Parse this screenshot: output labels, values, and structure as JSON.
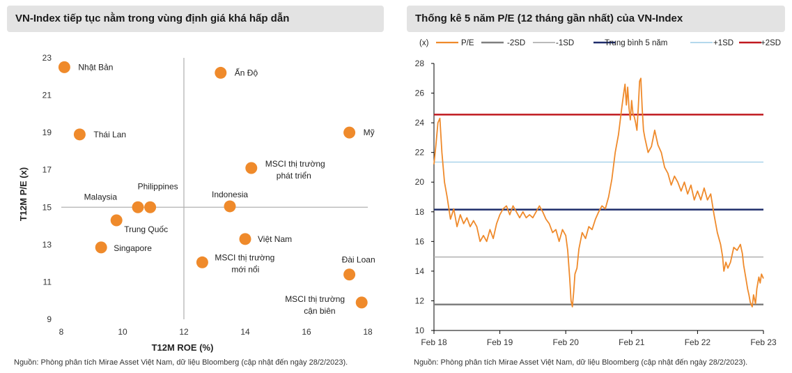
{
  "left": {
    "title": "VN-Index tiếp tục nằm trong vùng định giá khá hấp dẫn",
    "source": "Nguồn: Phòng phân tích Mirae Asset Việt Nam, dữ liệu Bloomberg (cập nhật đến ngày 28/2/2023).",
    "colors": {
      "point": "#ef8a2b",
      "crosshair": "#b3b3b3"
    }
  },
  "right": {
    "title": "Thống kê 5 năm P/E (12 tháng gần nhất) của VN-Index",
    "source": "Nguồn: Phòng phân tích Mirae Asset Việt Nam, dữ liệu Bloomberg (cập nhật đến ngày 28/2/2023).",
    "unit_label": "(x)"
  },
  "chart_data": [
    {
      "type": "scatter",
      "title": "VN-Index tiếp tục nằm trong vùng định giá khá hấp dẫn",
      "xlabel": "T12M ROE (%)",
      "ylabel": "T12M P/E (x)",
      "xlim": [
        8,
        18
      ],
      "ylim": [
        9,
        23
      ],
      "xticks": [
        8,
        10,
        12,
        14,
        16,
        18
      ],
      "yticks": [
        9,
        11,
        13,
        15,
        17,
        19,
        21,
        23
      ],
      "crosshair": {
        "x": 12,
        "y": 15
      },
      "points": [
        {
          "name": "Nhật Bản",
          "lines": [
            "Nhật Bản"
          ],
          "x": 8.1,
          "y": 22.5
        },
        {
          "name": "Ấn Độ",
          "lines": [
            "Ấn Độ"
          ],
          "x": 13.2,
          "y": 22.2
        },
        {
          "name": "Thái Lan",
          "lines": [
            "Thái Lan"
          ],
          "x": 8.6,
          "y": 18.9
        },
        {
          "name": "Mỹ",
          "lines": [
            "Mỹ"
          ],
          "x": 17.4,
          "y": 19.0
        },
        {
          "name": "MSCI thị trường phát triển",
          "lines": [
            "MSCI thị trường",
            "phát triển"
          ],
          "x": 14.2,
          "y": 17.1
        },
        {
          "name": "Malaysia",
          "lines": [
            "Malaysia"
          ],
          "x": 10.5,
          "y": 15.0
        },
        {
          "name": "Philippines",
          "lines": [
            "Philippines"
          ],
          "x": 10.9,
          "y": 15.0
        },
        {
          "name": "Indonesia",
          "lines": [
            "Indonesia"
          ],
          "x": 13.5,
          "y": 15.05
        },
        {
          "name": "Trung Quốc",
          "lines": [
            "Trung Quốc"
          ],
          "x": 9.8,
          "y": 14.3
        },
        {
          "name": "Singapore",
          "lines": [
            "Singapore"
          ],
          "x": 9.3,
          "y": 12.85
        },
        {
          "name": "Việt Nam",
          "lines": [
            "Việt Nam"
          ],
          "x": 14.0,
          "y": 13.3
        },
        {
          "name": "MSCI thị trường mới nổi",
          "lines": [
            "MSCI thị trường",
            "mới nổi"
          ],
          "x": 12.6,
          "y": 12.05
        },
        {
          "name": "Đài Loan",
          "lines": [
            "Đài Loan"
          ],
          "x": 17.4,
          "y": 11.4
        },
        {
          "name": "MSCI thị trường cận biên",
          "lines": [
            "MSCI thị trường",
            "cận biên"
          ],
          "x": 17.8,
          "y": 9.9
        }
      ]
    },
    {
      "type": "line",
      "title": "Thống kê 5 năm P/E (12 tháng gần nhất) của VN-Index",
      "ylabel": "(x)",
      "ylim": [
        10,
        28
      ],
      "yticks": [
        10,
        12,
        14,
        16,
        18,
        20,
        22,
        24,
        26,
        28
      ],
      "xlim": [
        2018.0,
        2023.0
      ],
      "xticks": [
        {
          "label": "Feb 18",
          "t": 2018.0
        },
        {
          "label": "Feb 19",
          "t": 2019.0
        },
        {
          "label": "Feb 20",
          "t": 2020.0
        },
        {
          "label": "Feb 21",
          "t": 2021.0
        },
        {
          "label": "Feb 22",
          "t": 2022.0
        },
        {
          "label": "Feb 23",
          "t": 2023.0
        }
      ],
      "legend": [
        "P/E",
        "-2SD",
        "-1SD",
        "Trung bình 5 năm",
        "+1SD",
        "+2SD"
      ],
      "hlines": [
        {
          "name": "-2SD",
          "value": 11.75,
          "color": "#7f7f7f",
          "width": 2.5
        },
        {
          "name": "-1SD",
          "value": 14.95,
          "color": "#b0b0b0",
          "width": 1.5
        },
        {
          "name": "Trung bình 5 năm",
          "value": 18.15,
          "color": "#1f2d6b",
          "width": 2.5
        },
        {
          "name": "+1SD",
          "value": 21.35,
          "color": "#a9d3ea",
          "width": 1.5
        },
        {
          "name": "+2SD",
          "value": 24.55,
          "color": "#c0191f",
          "width": 2.5
        }
      ],
      "series": [
        {
          "name": "P/E",
          "color": "#ef8a2b",
          "points": [
            [
              2018.0,
              21.2
            ],
            [
              2018.03,
              22.5
            ],
            [
              2018.06,
              24.0
            ],
            [
              2018.09,
              24.3
            ],
            [
              2018.12,
              22.0
            ],
            [
              2018.16,
              20.0
            ],
            [
              2018.2,
              19.0
            ],
            [
              2018.25,
              17.5
            ],
            [
              2018.3,
              18.2
            ],
            [
              2018.35,
              17.0
            ],
            [
              2018.4,
              17.8
            ],
            [
              2018.45,
              17.2
            ],
            [
              2018.5,
              17.6
            ],
            [
              2018.55,
              17.0
            ],
            [
              2018.6,
              17.4
            ],
            [
              2018.65,
              17.0
            ],
            [
              2018.7,
              16.0
            ],
            [
              2018.75,
              16.4
            ],
            [
              2018.8,
              16.0
            ],
            [
              2018.85,
              16.8
            ],
            [
              2018.9,
              16.2
            ],
            [
              2018.95,
              17.2
            ],
            [
              2019.0,
              17.8
            ],
            [
              2019.05,
              18.2
            ],
            [
              2019.1,
              18.4
            ],
            [
              2019.15,
              17.8
            ],
            [
              2019.2,
              18.4
            ],
            [
              2019.25,
              18.0
            ],
            [
              2019.3,
              17.6
            ],
            [
              2019.35,
              18.0
            ],
            [
              2019.4,
              17.6
            ],
            [
              2019.45,
              17.8
            ],
            [
              2019.5,
              17.6
            ],
            [
              2019.55,
              18.0
            ],
            [
              2019.6,
              18.4
            ],
            [
              2019.65,
              18.0
            ],
            [
              2019.7,
              17.5
            ],
            [
              2019.75,
              17.2
            ],
            [
              2019.8,
              16.6
            ],
            [
              2019.85,
              16.8
            ],
            [
              2019.9,
              16.0
            ],
            [
              2019.95,
              16.8
            ],
            [
              2020.0,
              16.4
            ],
            [
              2020.03,
              15.4
            ],
            [
              2020.06,
              13.5
            ],
            [
              2020.08,
              12.0
            ],
            [
              2020.1,
              11.6
            ],
            [
              2020.12,
              12.6
            ],
            [
              2020.14,
              13.8
            ],
            [
              2020.17,
              14.2
            ],
            [
              2020.2,
              15.5
            ],
            [
              2020.25,
              16.6
            ],
            [
              2020.3,
              16.2
            ],
            [
              2020.35,
              17.0
            ],
            [
              2020.4,
              16.8
            ],
            [
              2020.45,
              17.5
            ],
            [
              2020.5,
              18.0
            ],
            [
              2020.55,
              18.4
            ],
            [
              2020.6,
              18.2
            ],
            [
              2020.65,
              19.0
            ],
            [
              2020.7,
              20.2
            ],
            [
              2020.75,
              22.0
            ],
            [
              2020.8,
              23.2
            ],
            [
              2020.85,
              25.0
            ],
            [
              2020.88,
              26.0
            ],
            [
              2020.9,
              26.6
            ],
            [
              2020.92,
              25.2
            ],
            [
              2020.94,
              26.4
            ],
            [
              2020.96,
              25.0
            ],
            [
              2020.98,
              24.2
            ],
            [
              2021.0,
              25.5
            ],
            [
              2021.02,
              24.6
            ],
            [
              2021.04,
              24.4
            ],
            [
              2021.06,
              24.0
            ],
            [
              2021.08,
              23.5
            ],
            [
              2021.1,
              25.0
            ],
            [
              2021.12,
              26.8
            ],
            [
              2021.14,
              27.0
            ],
            [
              2021.16,
              25.0
            ],
            [
              2021.18,
              23.5
            ],
            [
              2021.2,
              23.0
            ],
            [
              2021.25,
              22.0
            ],
            [
              2021.3,
              22.4
            ],
            [
              2021.35,
              23.5
            ],
            [
              2021.4,
              22.5
            ],
            [
              2021.45,
              22.0
            ],
            [
              2021.5,
              21.0
            ],
            [
              2021.55,
              20.6
            ],
            [
              2021.6,
              19.8
            ],
            [
              2021.65,
              20.4
            ],
            [
              2021.7,
              20.0
            ],
            [
              2021.75,
              19.4
            ],
            [
              2021.8,
              20.0
            ],
            [
              2021.85,
              19.2
            ],
            [
              2021.9,
              19.8
            ],
            [
              2021.95,
              18.8
            ],
            [
              2022.0,
              19.4
            ],
            [
              2022.05,
              18.8
            ],
            [
              2022.1,
              19.6
            ],
            [
              2022.15,
              18.8
            ],
            [
              2022.2,
              19.2
            ],
            [
              2022.25,
              17.8
            ],
            [
              2022.3,
              16.6
            ],
            [
              2022.35,
              15.8
            ],
            [
              2022.38,
              15.0
            ],
            [
              2022.4,
              14.0
            ],
            [
              2022.43,
              14.6
            ],
            [
              2022.46,
              14.2
            ],
            [
              2022.5,
              14.6
            ],
            [
              2022.55,
              15.6
            ],
            [
              2022.6,
              15.4
            ],
            [
              2022.65,
              15.8
            ],
            [
              2022.68,
              15.2
            ],
            [
              2022.7,
              14.4
            ],
            [
              2022.73,
              13.6
            ],
            [
              2022.76,
              12.8
            ],
            [
              2022.78,
              12.4
            ],
            [
              2022.8,
              11.9
            ],
            [
              2022.83,
              11.6
            ],
            [
              2022.85,
              12.4
            ],
            [
              2022.88,
              11.8
            ],
            [
              2022.9,
              12.8
            ],
            [
              2022.93,
              13.6
            ],
            [
              2022.95,
              13.2
            ],
            [
              2022.97,
              13.8
            ],
            [
              2023.0,
              13.5
            ]
          ]
        }
      ]
    }
  ]
}
